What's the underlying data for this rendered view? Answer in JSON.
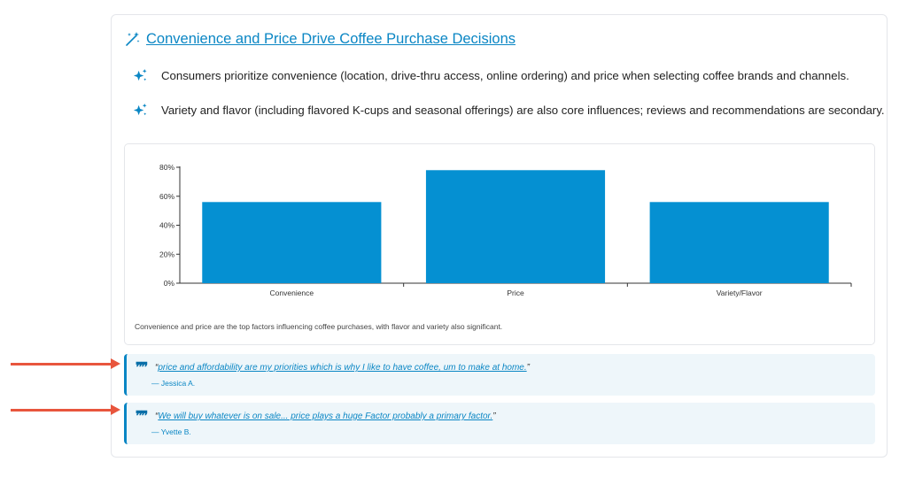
{
  "insight": {
    "title": "Convenience and Price Drive Coffee Purchase Decisions",
    "bullets": [
      "Consumers prioritize convenience (location, drive-thru access, online ordering) and price when selecting coffee brands and channels.",
      "Variety and flavor (including flavored K-cups and seasonal offerings) are also core influences; reviews and recommendations are secondary."
    ],
    "caption": "Convenience and price are the top factors influencing coffee purchases, with flavor and variety also significant."
  },
  "quotes": [
    {
      "open": "“",
      "text": "price and affordability are my priorities which is why I like to have coffee, um to make at home.",
      "close": "”",
      "author": "— Jessica A."
    },
    {
      "open": "“",
      "text": "We will buy whatever is on sale... price plays a huge Factor probably a primary factor.",
      "close": "”",
      "author": "— Yvette B."
    }
  ],
  "colors": {
    "accent": "#0a86c4",
    "bar": "#0590d2",
    "quote_bg": "#eef6fa",
    "arrow": "#e8553d"
  },
  "chart_data": {
    "type": "bar",
    "categories": [
      "Convenience",
      "Price",
      "Variety/Flavor"
    ],
    "values": [
      56,
      78,
      56
    ],
    "ylim": [
      0,
      80
    ],
    "yticks": [
      0,
      20,
      40,
      60,
      80
    ],
    "ytick_labels": [
      "0%",
      "20%",
      "40%",
      "60%",
      "80%"
    ],
    "title": "",
    "xlabel": "",
    "ylabel": "",
    "grid": false,
    "legend": "none"
  }
}
